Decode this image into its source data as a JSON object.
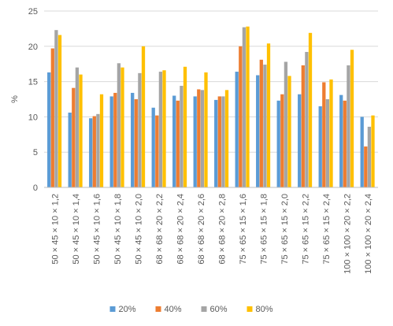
{
  "chart_data": {
    "type": "bar",
    "ylabel": "%",
    "ylim": [
      0,
      25
    ],
    "yticks": [
      0,
      5,
      10,
      15,
      20,
      25
    ],
    "grid": true,
    "legend_position": "bottom",
    "categories": [
      "50 × 45 × 10 × 1,2",
      "50 × 45 × 10 × 1,4",
      "50 × 45 × 10 × 1,6",
      "50 × 45 × 10 × 1,8",
      "50 × 45 × 10 × 2,0",
      "68 × 68 × 20 × 2,2",
      "68 × 68 × 20 × 2,4",
      "68 × 68 × 20 × 2,6",
      "68 × 68 × 20 × 2,8",
      "75 × 65 × 15 × 1,6",
      "75 × 65 × 15 × 1,8",
      "75 × 65 × 15 × 2,0",
      "75 × 65 × 15 × 2,2",
      "75 × 65 × 15 × 2,4",
      "100 × 100 × 20 × 2,2",
      "100 × 100 × 20 × 2,4"
    ],
    "series": [
      {
        "name": "20%",
        "color": "#5B9BD5",
        "values": [
          16.3,
          10.6,
          9.8,
          12.9,
          13.4,
          11.3,
          13.0,
          12.9,
          12.4,
          16.4,
          15.9,
          12.3,
          13.2,
          11.5,
          13.1,
          10.0
        ]
      },
      {
        "name": "40%",
        "color": "#ED7D31",
        "values": [
          19.7,
          14.1,
          10.1,
          13.4,
          12.5,
          10.2,
          12.3,
          13.9,
          12.9,
          20.0,
          18.1,
          13.2,
          17.3,
          14.9,
          12.3,
          5.8
        ]
      },
      {
        "name": "60%",
        "color": "#A5A5A5",
        "values": [
          22.3,
          17.0,
          10.4,
          17.6,
          16.2,
          16.4,
          14.4,
          13.8,
          12.9,
          22.7,
          17.4,
          17.8,
          19.2,
          12.5,
          17.3,
          8.6
        ]
      },
      {
        "name": "80%",
        "color": "#FFC000",
        "values": [
          21.6,
          16.0,
          13.2,
          17.0,
          20.0,
          16.6,
          17.1,
          16.3,
          13.8,
          22.8,
          20.4,
          15.8,
          21.9,
          15.3,
          19.5,
          10.2
        ]
      }
    ]
  },
  "colors": {
    "grid": "#D9D9D9",
    "axis": "#BFBFBF",
    "text": "#595959"
  }
}
